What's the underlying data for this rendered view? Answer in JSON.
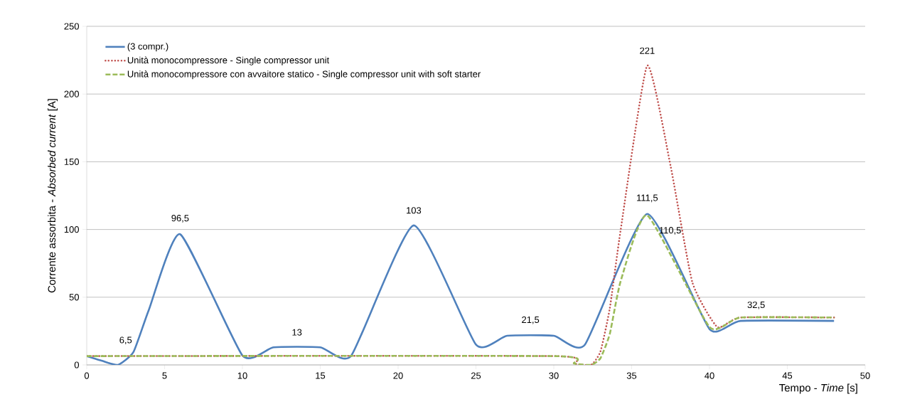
{
  "chart_data": {
    "type": "line",
    "xlabel": "Tempo - *Time* [s]",
    "ylabel": "Corrente assorbita  - *Absorbed current* [A]",
    "xlim": [
      0,
      50
    ],
    "xticks": [
      0,
      5,
      10,
      15,
      20,
      25,
      30,
      35,
      40,
      45,
      50
    ],
    "ylim": [
      0,
      250
    ],
    "yticks": [
      0,
      50,
      100,
      150,
      200,
      250
    ],
    "grid": "y",
    "legend": "top left",
    "marker": "none",
    "series": [
      {
        "name": "(3 compr.)",
        "color": "#4f81bd",
        "line_style": "solid",
        "x": [
          0,
          1,
          2,
          3,
          4,
          6,
          10,
          12,
          15,
          17,
          21,
          25,
          27,
          30,
          32,
          36,
          40,
          42,
          48
        ],
        "values": [
          6.5,
          3,
          0,
          9.5,
          41,
          96.5,
          7,
          13,
          13,
          7,
          103,
          15,
          21.5,
          21.5,
          15,
          111.5,
          26.5,
          32.5,
          32.5
        ]
      },
      {
        "name": "Unità monocompressore - Single compressor unit",
        "color": "#c0504d",
        "line_style": "dotted",
        "x": [
          0,
          30,
          31.3,
          32.4,
          33,
          33.6,
          34.3,
          36,
          37.5,
          38.9,
          40.5,
          42,
          48
        ],
        "values": [
          6.5,
          6.5,
          1,
          0,
          10,
          42,
          100,
          221,
          147,
          61,
          28,
          35,
          35
        ]
      },
      {
        "name": "Unità monocompressore con avvaitore statico - Single compressor unit with soft starter",
        "color": "#9bbb59",
        "line_style": "dashed",
        "x": [
          0,
          30,
          31.3,
          32.4,
          33,
          33.6,
          34.3,
          36,
          40,
          42,
          48
        ],
        "values": [
          6.5,
          6.5,
          1,
          0,
          5,
          23,
          62,
          110.5,
          28,
          35,
          35
        ]
      }
    ],
    "annotations": [
      {
        "text": "6,5",
        "x": 2.5,
        "y": 6.5
      },
      {
        "text": "96,5",
        "x": 6,
        "y": 96.5
      },
      {
        "text": "13",
        "x": 13.5,
        "y": 13
      },
      {
        "text": "103",
        "x": 21,
        "y": 103
      },
      {
        "text": "21,5",
        "x": 28.5,
        "y": 21.5
      },
      {
        "text": "221",
        "x": 36,
        "y": 221
      },
      {
        "text": "111,5",
        "x": 36,
        "y": 111.5
      },
      {
        "text": "110,5",
        "x": 36,
        "y": 110.5
      },
      {
        "text": "32,5",
        "x": 43,
        "y": 32.5
      }
    ]
  }
}
